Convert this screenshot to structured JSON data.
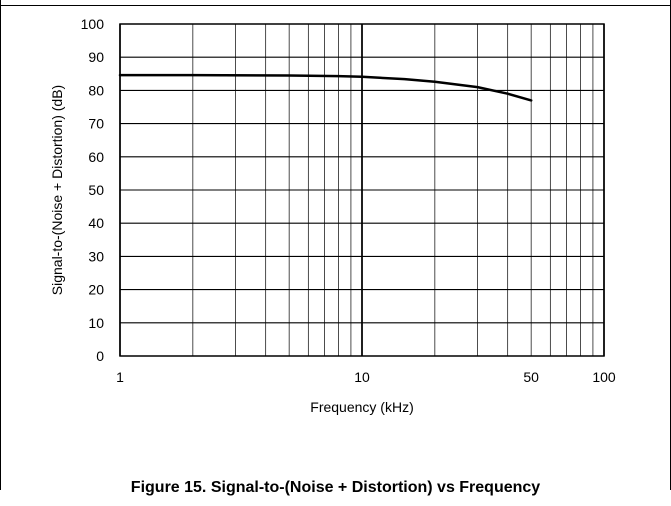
{
  "caption": "Figure 15. Signal-to-(Noise + Distortion) vs Frequency",
  "chart_data": {
    "type": "line",
    "xlabel": "Frequency (kHz)",
    "ylabel": "Signal-to-(Noise + Distortion) (dB)",
    "x_scale": "log",
    "xlim": [
      1,
      100
    ],
    "ylim": [
      0,
      100
    ],
    "x_ticks": [
      1,
      10,
      50,
      100
    ],
    "x_tick_labels": [
      "1",
      "10",
      "50",
      "100"
    ],
    "y_ticks": [
      0,
      10,
      20,
      30,
      40,
      50,
      60,
      70,
      80,
      90,
      100
    ],
    "y_tick_labels": [
      "0",
      "10",
      "20",
      "30",
      "40",
      "50",
      "60",
      "70",
      "80",
      "90",
      "100"
    ],
    "grid": true,
    "series": [
      {
        "color": "#000000",
        "x": [
          1,
          2,
          5,
          8,
          10,
          15,
          20,
          30,
          40,
          50
        ],
        "y": [
          84.6,
          84.6,
          84.5,
          84.3,
          84.1,
          83.4,
          82.6,
          81.0,
          79.0,
          77.0
        ]
      }
    ]
  }
}
